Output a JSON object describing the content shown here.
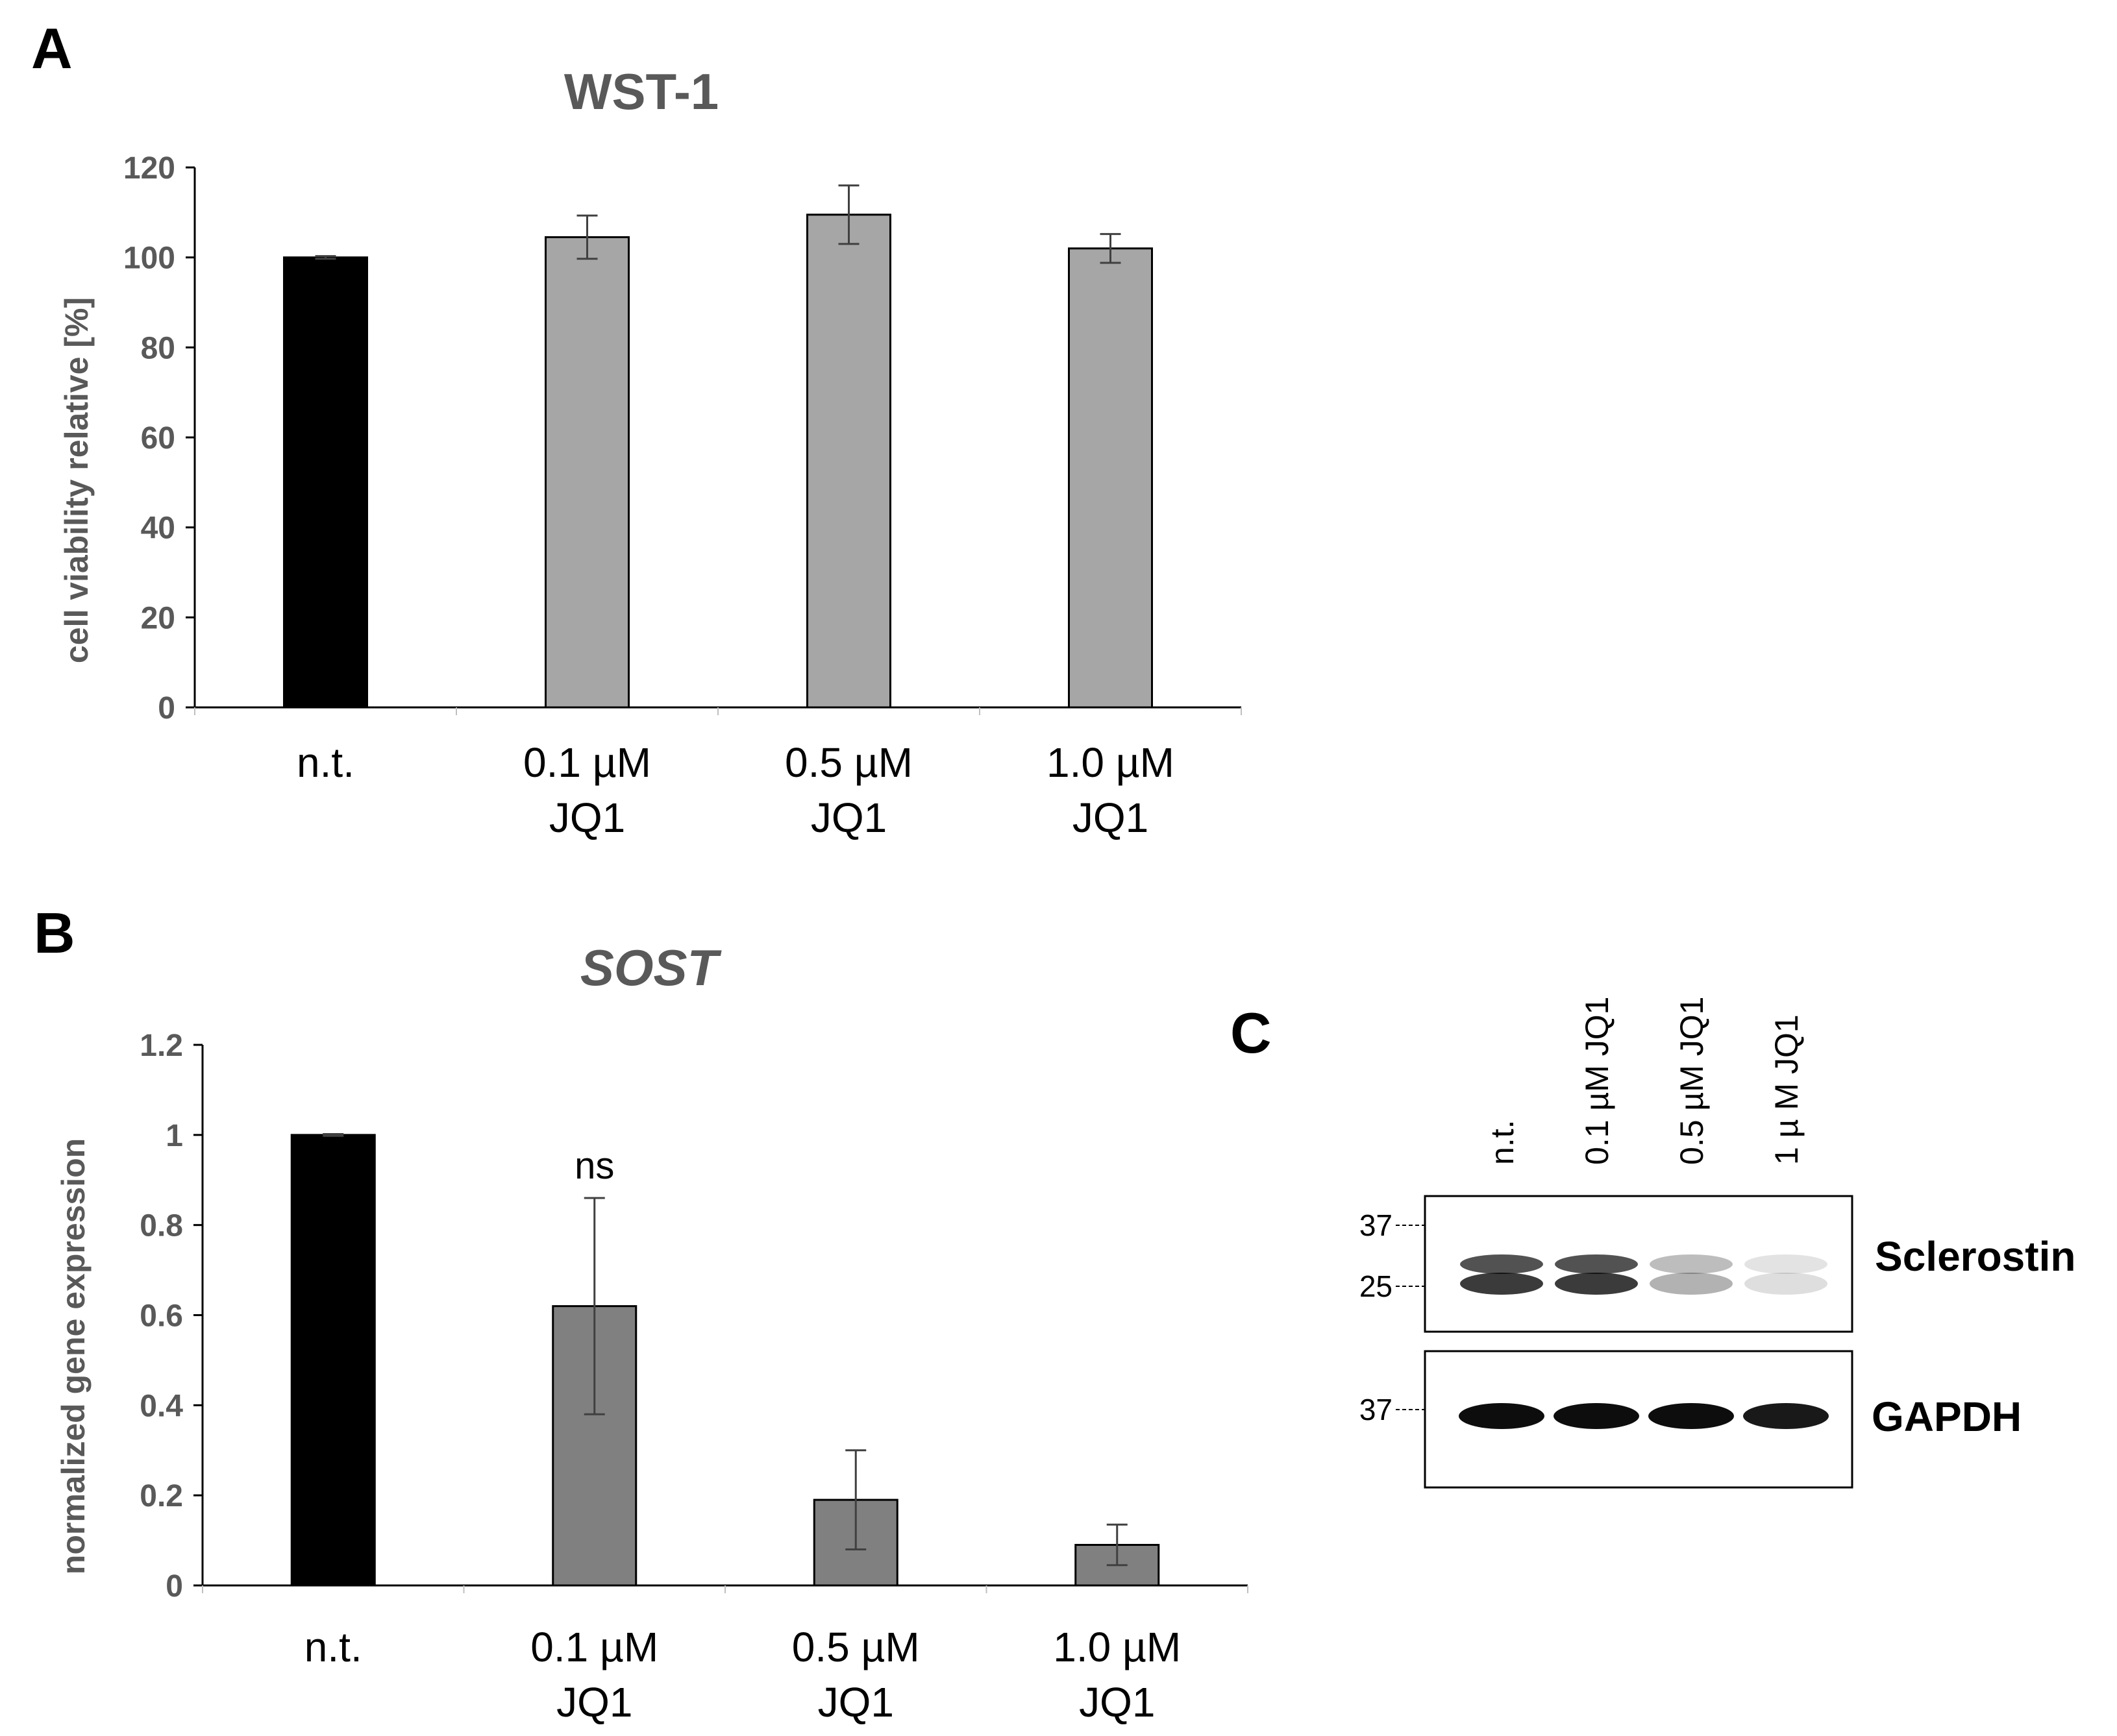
{
  "panels": {
    "a": "A",
    "b": "B",
    "c": "C"
  },
  "chart_data": [
    {
      "type": "bar",
      "title": "WST-1",
      "ylabel": "cell viability relative  [%]",
      "xlabel": "",
      "ylim": [
        0,
        120
      ],
      "yticks": [
        0,
        20,
        40,
        60,
        80,
        100,
        120
      ],
      "grid": false,
      "categories": [
        [
          "n.t."
        ],
        [
          "0.1 µM",
          "JQ1"
        ],
        [
          "0.5 µM",
          "JQ1"
        ],
        [
          "1.0 µM",
          "JQ1"
        ]
      ],
      "values": [
        100,
        104.5,
        109.5,
        102
      ],
      "errors": [
        0.3,
        4.8,
        6.5,
        3.2
      ],
      "colors": [
        "#000000",
        "#a6a6a6",
        "#a6a6a6",
        "#a6a6a6"
      ],
      "annotations": []
    },
    {
      "type": "bar",
      "title": "SOST",
      "ylabel": "normalized gene expression",
      "xlabel": "",
      "ylim": [
        0,
        1.2
      ],
      "yticks": [
        0,
        0.2,
        0.4,
        0.6,
        0.8,
        1,
        1.2
      ],
      "grid": false,
      "categories": [
        [
          "n.t."
        ],
        [
          "0.1 µM",
          "JQ1"
        ],
        [
          "0.5 µM",
          "JQ1"
        ],
        [
          "1.0 µM",
          "JQ1"
        ]
      ],
      "values": [
        1.0,
        0.62,
        0.19,
        0.09
      ],
      "errors": [
        0.002,
        0.24,
        0.11,
        0.045
      ],
      "colors": [
        "#000000",
        "#808080",
        "#808080",
        "#808080"
      ],
      "annotations": [
        {
          "index": 1,
          "text": "ns"
        }
      ]
    }
  ],
  "blot": {
    "lanes": [
      "n.t.",
      "0.1 µM JQ1",
      "0.5 µM JQ1",
      "1 µ M JQ1"
    ],
    "markers_top": [
      "37",
      "25"
    ],
    "markers_bottom": [
      "37"
    ],
    "label_top": "Sclerostin",
    "label_bottom": "GAPDH",
    "sclerostin_intensity": [
      0.9,
      0.9,
      0.35,
      0.15
    ],
    "gapdh_intensity": [
      1.0,
      1.0,
      1.0,
      0.95
    ]
  }
}
